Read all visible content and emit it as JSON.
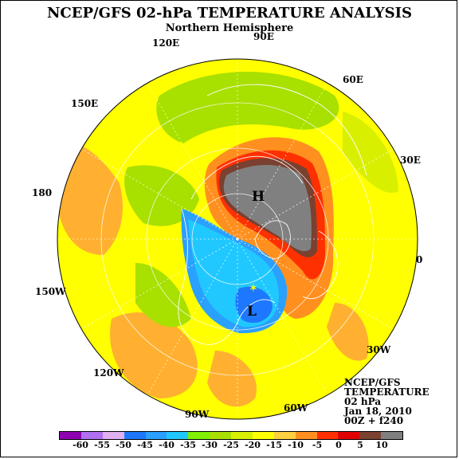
{
  "title": "NCEP/GFS 02-hPa TEMPERATURE ANALYSIS",
  "subtitle": "Northern Hemisphere",
  "info": {
    "line1": "NCEP/GFS",
    "line2": "TEMPERATURE",
    "line3": "02 hPa",
    "line4": "Jan 18, 2010",
    "line5": "00Z + f240"
  },
  "longitude_labels": [
    "90E",
    "60E",
    "30E",
    "0",
    "30W",
    "60W",
    "90W",
    "120W",
    "150W",
    "180",
    "150E",
    "120E"
  ],
  "pressure_markers": {
    "high": "H",
    "low": "L"
  },
  "colorbar": {
    "colors": [
      "#8e00b0",
      "#b070f0",
      "#e0b0f0",
      "#1e78ff",
      "#2aa0ff",
      "#20c8ff",
      "#80f000",
      "#a8e000",
      "#d8f000",
      "#ffff00",
      "#ffd040",
      "#ff9020",
      "#ff3000",
      "#e00000",
      "#7a4030",
      "#808080"
    ],
    "ticks": [
      "-60",
      "-55",
      "-50",
      "-45",
      "-40",
      "-35",
      "-30",
      "-25",
      "-20",
      "-15",
      "-10",
      "-5",
      "0",
      "5",
      "10"
    ]
  },
  "palette": {
    "yellow": "#ffff00",
    "pale_yellow": "#ffd040",
    "orange": "#ff9020",
    "orange_light": "#ffb030",
    "red": "#ff3000",
    "dark_red": "#e00000",
    "brown": "#7a4030",
    "gray": "#808080",
    "lime": "#d8f000",
    "green": "#a8e000",
    "bright_green": "#80f000",
    "cyan": "#20c8ff",
    "sky_blue": "#2aa0ff",
    "blue": "#1e78ff"
  }
}
